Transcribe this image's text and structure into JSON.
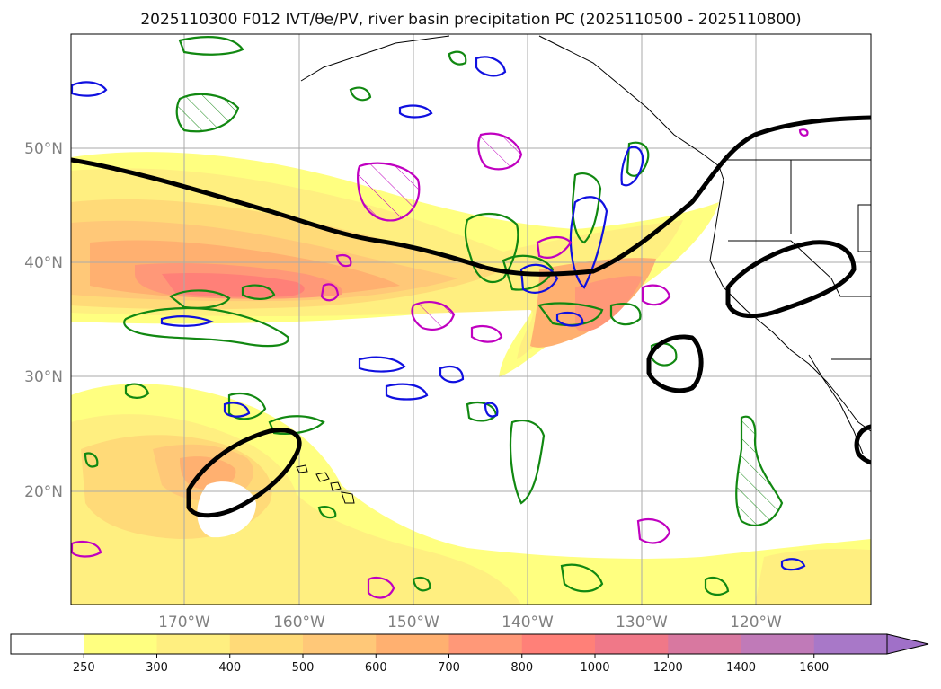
{
  "title": "2025110300 F012 IVT/θe/PV, river basin precipitation PC (2025110500 - 2025110800)",
  "map": {
    "lat_labels": [
      "50°N",
      "40°N",
      "30°N",
      "20°N"
    ],
    "lon_labels": [
      "170°W",
      "160°W",
      "150°W",
      "140°W",
      "130°W",
      "120°W"
    ],
    "grid": true
  },
  "colorbar": {
    "extend": "max",
    "ticks": [
      "250",
      "300",
      "400",
      "500",
      "600",
      "700",
      "800",
      "1000",
      "1200",
      "1400",
      "1600"
    ],
    "colors": [
      "#ffffff",
      "#ffff80",
      "#ffef80",
      "#ffda78",
      "#ffc878",
      "#ffb070",
      "#ff9878",
      "#ff8078",
      "#f07888",
      "#d878a0",
      "#c07ab8",
      "#a878c8"
    ]
  }
}
